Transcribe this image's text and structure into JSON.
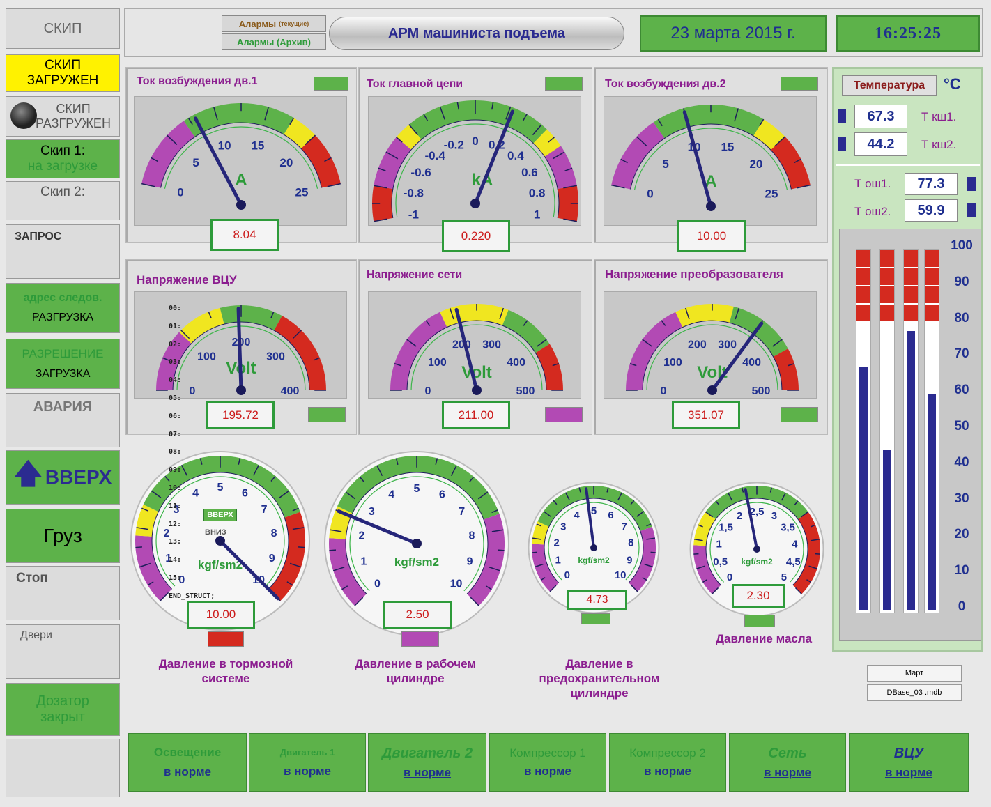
{
  "left_panel": {
    "skip_header": "СКИП",
    "skip_loaded": [
      "СКИП",
      "ЗАГРУЖЕН"
    ],
    "skip_unloaded": [
      "СКИП",
      "РАЗГРУЖЕН"
    ],
    "skip1_label": "Скип 1:",
    "skip1_status": "на загрузке",
    "skip2_label": "Скип 2:",
    "request": "ЗАПРОС",
    "next_addr_label": "адрес следов.",
    "next_addr_value": "РАЗГРУЗКА",
    "permission_label": "РАЗРЕШЕНИЕ",
    "permission_value": "ЗАГРУЗКА",
    "alarm": "АВАРИЯ",
    "up": "ВВЕРХ",
    "cargo": "Груз",
    "stop": "Стоп",
    "doors": "Двери",
    "dispenser": [
      "Дозатор",
      "закрыт"
    ]
  },
  "header": {
    "alarms_current": "Алармы",
    "alarms_current_sub": "(текущие)",
    "alarms_archive": "Алармы (Архив)",
    "title": "АРМ машиниста подъема",
    "date": "23 марта 2015 г.",
    "time": "16:25:25"
  },
  "gauges": {
    "g1": {
      "title": "Ток возбуждения дв.1",
      "unit": "A",
      "value": "8.04",
      "ticks": [
        "0",
        "5",
        "10",
        "15",
        "20",
        "25"
      ],
      "v": 8.04,
      "min": 0,
      "max": 25
    },
    "g2": {
      "title": "Ток главной цепи",
      "unit": "kA",
      "value": "0.220",
      "ticks": [
        "-1",
        "-0.8",
        "-0.6",
        "-0.4",
        "-0.2",
        "0",
        "0.2",
        "0.4",
        "0.6",
        "0.8",
        "1"
      ],
      "v": 0.22,
      "min": -1,
      "max": 1
    },
    "g3": {
      "title": "Ток возбуждения дв.2",
      "unit": "A",
      "value": "10.00",
      "ticks": [
        "0",
        "5",
        "10",
        "15",
        "20",
        "25"
      ],
      "v": 10.0,
      "min": 0,
      "max": 25
    },
    "g4": {
      "title": "Напряжение ВЦУ",
      "unit": "Volt",
      "value": "195.72",
      "ticks": [
        "0",
        "100",
        "200",
        "300",
        "400"
      ],
      "v": 195.72,
      "min": 0,
      "max": 400
    },
    "g5": {
      "title": "Напряжение сети",
      "unit": "Volt",
      "value": "211.00",
      "ticks": [
        "0",
        "100",
        "200",
        "300",
        "400",
        "500"
      ],
      "v": 211.0,
      "min": 0,
      "max": 500
    },
    "g6": {
      "title": "Напряжение преобразователя",
      "unit": "Volt",
      "value": "351.07",
      "ticks": [
        "0",
        "100",
        "200",
        "300",
        "400",
        "500"
      ],
      "v": 351.07,
      "min": 0,
      "max": 500
    }
  },
  "pressure": {
    "p1": {
      "caption": "Давление в тормозной системе",
      "unit": "kgf/sm2",
      "value": "10.00",
      "ticks": [
        "0",
        "1",
        "2",
        "3",
        "4",
        "5",
        "6",
        "7",
        "8",
        "9",
        "10"
      ],
      "v": 10.0,
      "min": 0,
      "max": 10,
      "up": "ВВЕРХ",
      "down": "ВНИЗ"
    },
    "p2": {
      "caption": "Давление в рабочем цилиндре",
      "unit": "kgf/sm2",
      "value": "2.50",
      "ticks": [
        "0",
        "1",
        "2",
        "3",
        "4",
        "5",
        "6",
        "7",
        "8",
        "9",
        "10"
      ],
      "v": 2.5,
      "min": 0,
      "max": 10
    },
    "p3": {
      "caption": "Давление в предохранительном цилиндре",
      "unit": "kgf/sm2",
      "value": "4.73",
      "ticks": [
        "0",
        "1",
        "2",
        "3",
        "4",
        "5",
        "6",
        "7",
        "8",
        "9",
        "10"
      ],
      "v": 4.73,
      "min": 0,
      "max": 10
    },
    "p4": {
      "caption": "Давление масла",
      "unit": "kgf/sm2",
      "value": "2.30",
      "ticks": [
        "0",
        "0,5",
        "1",
        "1,5",
        "2",
        "2,5",
        "3",
        "3,5",
        "4",
        "4,5",
        "5"
      ],
      "v": 2.3,
      "min": 0,
      "max": 5
    }
  },
  "debug_lines": [
    "00:",
    "01:",
    "02:",
    "03:",
    "04:",
    "05:",
    "06:",
    "07:",
    "08:",
    "09:",
    "10:",
    "11:",
    "12:",
    "13:",
    "14:",
    "15:",
    "END_STRUCT;"
  ],
  "temperature": {
    "label": "Температура",
    "unit": "°C",
    "tksh1_value": "67.3",
    "tksh1_label": "Т кш1.",
    "tksh2_value": "44.2",
    "tksh2_label": "Т кш2.",
    "tosh1_label": "Т ош1.",
    "tosh1_value": "77.3",
    "tosh2_label": "Т ош2.",
    "tosh2_value": "59.9",
    "scale": [
      "100",
      "90",
      "80",
      "70",
      "60",
      "50",
      "40",
      "30",
      "20",
      "10",
      "0"
    ],
    "bars": [
      67.3,
      44.2,
      77.3,
      59.9
    ]
  },
  "db": {
    "month": "Март",
    "file": "DBase_03 .mdb"
  },
  "status_bar": [
    {
      "name": "Освещение",
      "state": "в норме"
    },
    {
      "name": "Двигатель 1",
      "state": "в норме"
    },
    {
      "name": "Двигатель 2",
      "state": "в норме"
    },
    {
      "name": "Компрессор 1",
      "state": "в норме"
    },
    {
      "name": "Компрессор 2",
      "state": "в норме"
    },
    {
      "name": "Сеть",
      "state": "в норме"
    },
    {
      "name": "ВЦУ",
      "state": "в норме"
    }
  ],
  "colors": {
    "green": "#5db24a",
    "red": "#d42a1f",
    "yellow": "#f0e620",
    "purple": "#b24ab4",
    "navy": "#2b2b90"
  }
}
